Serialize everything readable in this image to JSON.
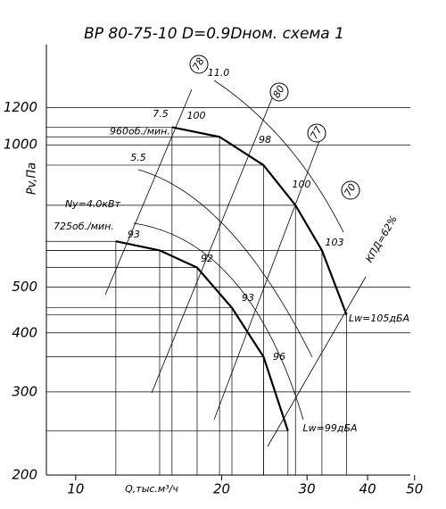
{
  "chart_data": {
    "type": "line",
    "title": "ВР 80-75-10 D=0.9Dном. схема 1",
    "y_label": "Pv,Па",
    "x_label": "Q,тыс.м³/ч",
    "log_x": true,
    "log_y": true,
    "grid": true,
    "xlim": [
      8.7,
      49
    ],
    "ylim": [
      200,
      1630
    ],
    "xticks": [
      10,
      20,
      30,
      40,
      50
    ],
    "yticks": [
      200,
      300,
      400,
      500,
      1000,
      1200
    ],
    "series": [
      {
        "name": "960об./мин.",
        "color": "#000000",
        "x": [
          15.8,
          19.8,
          24.4,
          28.4,
          32.2,
          36.2
        ],
        "values": [
          1090,
          1040,
          906,
          745,
          598,
          437
        ]
      },
      {
        "name": "725об./мин.",
        "color": "#000000",
        "x": [
          12.1,
          14.9,
          17.8,
          21.0,
          24.4,
          27.4
        ],
        "values": [
          625,
          598,
          550,
          452,
          356,
          248
        ]
      }
    ],
    "annotations": [
      "Ny=4.0кВт",
      "7.5",
      "5.5",
      "11.0",
      "100",
      "98",
      "100",
      "103",
      "93",
      "92",
      "93",
      "96",
      "78",
      "80",
      "77",
      "70",
      "КПД=62%",
      "Lw=105дБА",
      "Lw=99дБА"
    ]
  }
}
